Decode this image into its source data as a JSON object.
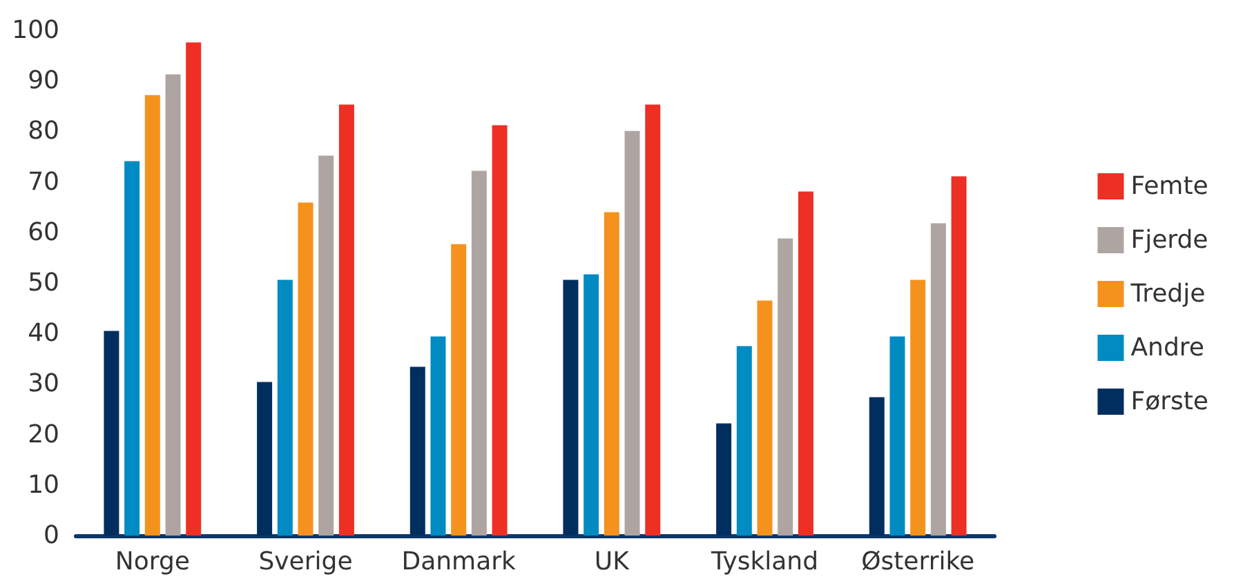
{
  "chart_data": {
    "type": "bar",
    "categories": [
      "Norge",
      "Sverige",
      "Danmark",
      "UK",
      "Tyskland",
      "Østerrike"
    ],
    "series": [
      {
        "name": "Første",
        "color": "#002f5f",
        "values": [
          40.5,
          30.4,
          33.4,
          50.6,
          22.2,
          27.4
        ]
      },
      {
        "name": "Andre",
        "color": "#008bc2",
        "values": [
          74.1,
          50.6,
          39.4,
          51.7,
          37.5,
          39.4
        ]
      },
      {
        "name": "Tredje",
        "color": "#f5921e",
        "values": [
          87.2,
          65.9,
          57.7,
          64,
          46.5,
          50.6
        ]
      },
      {
        "name": "Fjerde",
        "color": "#aea5a2",
        "values": [
          91.3,
          75.2,
          72.2,
          80.1,
          58.8,
          61.8
        ]
      },
      {
        "name": "Femte",
        "color": "#ee2f24",
        "values": [
          97.6,
          85.3,
          81.2,
          85.3,
          68.1,
          71.1
        ]
      }
    ],
    "ylim": [
      0,
      100
    ],
    "yticks": [
      0,
      10,
      20,
      30,
      40,
      50,
      60,
      70,
      80,
      90,
      100
    ],
    "grid": false,
    "legend": "right"
  }
}
